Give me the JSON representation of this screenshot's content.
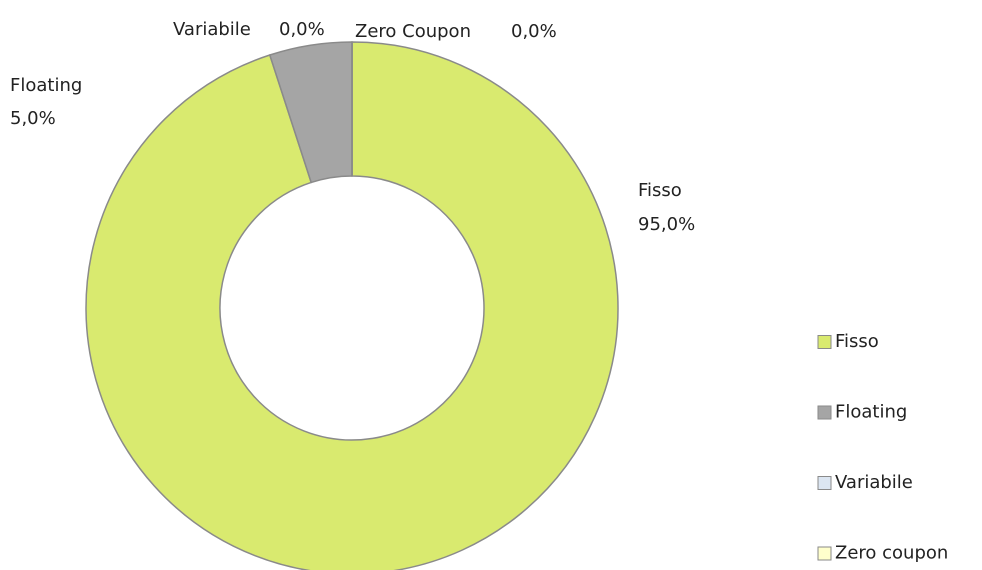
{
  "chart_data": {
    "type": "donut",
    "categories": [
      "Fisso",
      "Floating",
      "Variabile",
      "Zero coupon"
    ],
    "data_label_names": [
      "Fisso",
      "Floating",
      "Variabile",
      "Zero Coupon"
    ],
    "values": [
      95,
      5,
      0,
      0
    ],
    "value_labels": [
      "95,0%",
      "5,0%",
      "0,0%",
      "0,0%"
    ],
    "colors": [
      "#d9ea6f",
      "#a5a5a5",
      "#dce6f2",
      "#ffffcc"
    ],
    "legend": "right"
  }
}
